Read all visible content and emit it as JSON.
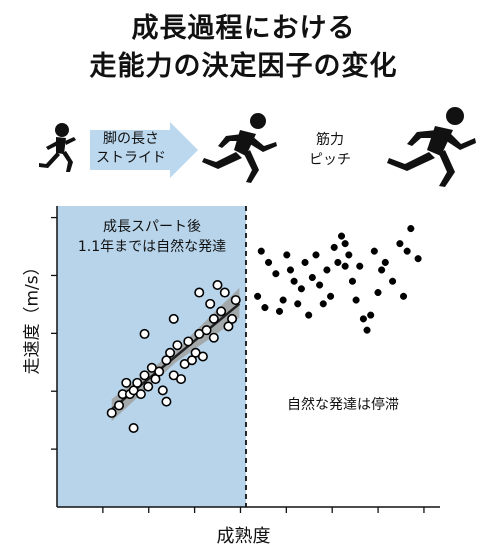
{
  "title": {
    "line1": "成長過程における",
    "line2": "走能力の決定因子の変化"
  },
  "diagram": {
    "arrow_label_line1": "脚の長さ",
    "arrow_label_line2": "ストライド",
    "side_label_line1": "筋力",
    "side_label_line2": "ピッチ",
    "icons": [
      "child-runner-icon",
      "arrow-right-icon",
      "youth-runner-icon",
      "adult-runner-icon"
    ]
  },
  "chart_data": {
    "type": "scatter",
    "xlabel": "成熟度",
    "ylabel": "走速度（m/s）",
    "shaded_region_label_line1": "成長スパート後",
    "shaded_region_label_line2": "1.1年までは自然な発達",
    "right_region_label": "自然な発達は停滞",
    "colors": {
      "shade": "#b7d4ea",
      "fit_line": "#222222",
      "ci_band": "#a0a0a0",
      "open_marker": "#ffffff",
      "filled_marker": "#000000"
    },
    "series": [
      {
        "marker": "open",
        "points": [
          [
            1.5,
            2.5
          ],
          [
            1.7,
            2.7
          ],
          [
            1.8,
            3.0
          ],
          [
            1.9,
            3.3
          ],
          [
            2.0,
            3.0
          ],
          [
            2.1,
            2.1
          ],
          [
            2.1,
            3.1
          ],
          [
            2.3,
            3.0
          ],
          [
            2.4,
            3.5
          ],
          [
            2.5,
            3.2
          ],
          [
            2.6,
            3.7
          ],
          [
            2.7,
            3.4
          ],
          [
            2.8,
            3.6
          ],
          [
            2.9,
            3.1
          ],
          [
            3.0,
            3.9
          ],
          [
            3.1,
            4.1
          ],
          [
            3.2,
            3.5
          ],
          [
            3.3,
            4.3
          ],
          [
            3.4,
            3.4
          ],
          [
            3.5,
            3.8
          ],
          [
            3.6,
            4.4
          ],
          [
            3.7,
            3.9
          ],
          [
            3.8,
            4.1
          ],
          [
            3.9,
            4.6
          ],
          [
            4.0,
            4.0
          ],
          [
            4.1,
            4.7
          ],
          [
            4.2,
            5.4
          ],
          [
            4.3,
            4.5
          ],
          [
            4.3,
            5.0
          ],
          [
            4.4,
            5.9
          ],
          [
            4.5,
            5.2
          ],
          [
            4.6,
            5.7
          ],
          [
            4.7,
            4.8
          ],
          [
            4.8,
            5.0
          ],
          [
            4.9,
            5.5
          ],
          [
            2.4,
            4.6
          ],
          [
            3.2,
            5.0
          ],
          [
            3.9,
            5.7
          ],
          [
            2.2,
            3.3
          ],
          [
            3.0,
            2.8
          ]
        ]
      },
      {
        "marker": "filled",
        "points": [
          [
            5.6,
            6.8
          ],
          [
            5.7,
            5.3
          ],
          [
            5.8,
            6.5
          ],
          [
            6.0,
            6.2
          ],
          [
            6.1,
            5.2
          ],
          [
            6.3,
            6.7
          ],
          [
            6.4,
            6.3
          ],
          [
            6.5,
            6.0
          ],
          [
            6.6,
            5.4
          ],
          [
            6.8,
            6.5
          ],
          [
            6.9,
            5.1
          ],
          [
            7.0,
            6.1
          ],
          [
            7.1,
            6.7
          ],
          [
            7.2,
            5.9
          ],
          [
            7.4,
            6.3
          ],
          [
            7.5,
            5.6
          ],
          [
            7.6,
            6.9
          ],
          [
            7.7,
            6.5
          ],
          [
            7.8,
            7.2
          ],
          [
            7.9,
            6.4
          ],
          [
            8.0,
            6.7
          ],
          [
            8.1,
            6.0
          ],
          [
            8.2,
            5.5
          ],
          [
            8.3,
            6.4
          ],
          [
            8.4,
            5.0
          ],
          [
            8.5,
            4.7
          ],
          [
            8.7,
            6.8
          ],
          [
            8.9,
            6.3
          ],
          [
            9.0,
            6.5
          ],
          [
            9.2,
            6.0
          ],
          [
            9.4,
            7.0
          ],
          [
            9.5,
            5.6
          ],
          [
            9.7,
            7.4
          ],
          [
            9.9,
            6.6
          ],
          [
            5.5,
            5.6
          ],
          [
            6.2,
            5.5
          ],
          [
            7.3,
            5.4
          ],
          [
            8.6,
            5.1
          ],
          [
            6.7,
            5.8
          ],
          [
            8.8,
            5.7
          ],
          [
            9.6,
            6.8
          ],
          [
            7.9,
            7.0
          ]
        ]
      }
    ],
    "shade_x_end": 5.0,
    "fit_line": {
      "x_start": 1.5,
      "x_end": 5.0,
      "y_start": 2.6,
      "y_end": 5.4
    },
    "xlim": [
      0,
      10.5
    ],
    "ylim": [
      0,
      8
    ],
    "x_ticks_count": 8,
    "y_ticks_count": 5
  }
}
